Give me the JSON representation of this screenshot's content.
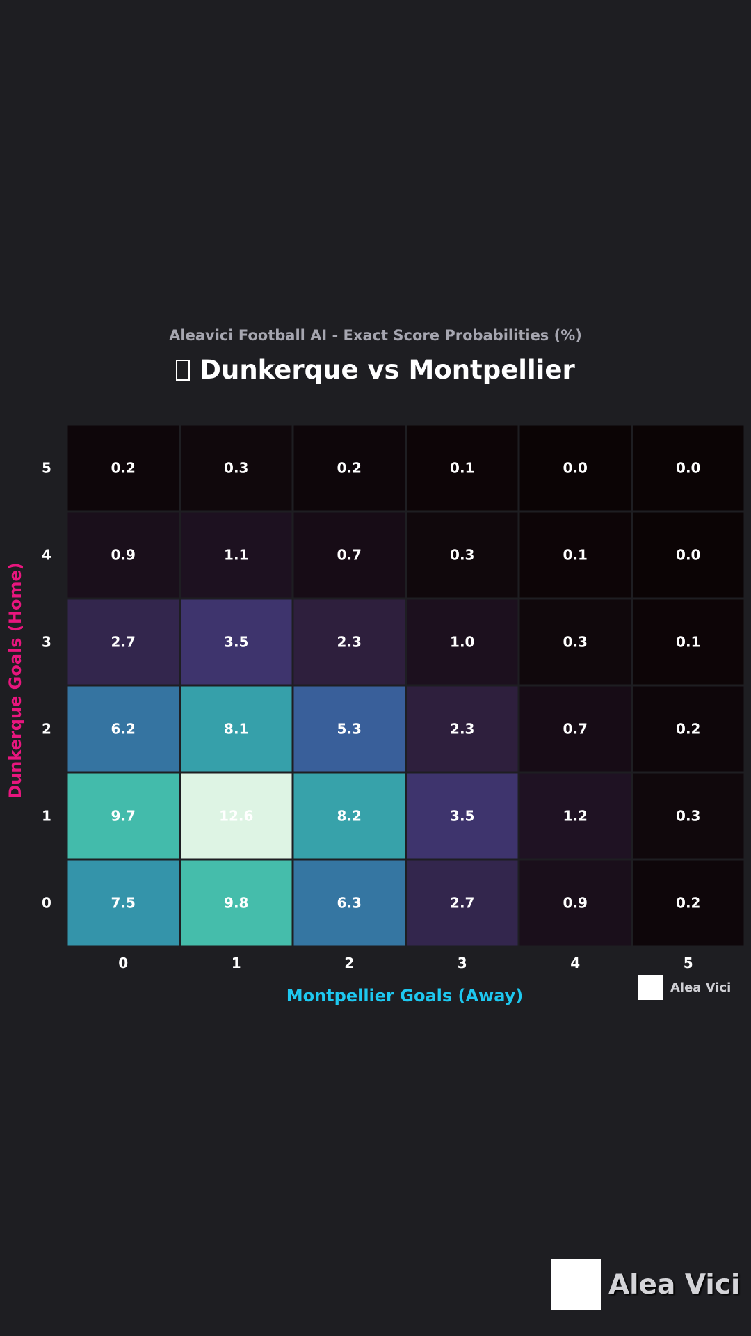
{
  "header": {
    "subtitle": "Aleavici Football AI - Exact Score Probabilities (%)",
    "title": "Dunkerque vs Montpellier"
  },
  "chart_data": {
    "type": "heatmap",
    "xlabel": "Montpellier Goals (Away)",
    "ylabel": "Dunkerque Goals (Home)",
    "x_categories": [
      "0",
      "1",
      "2",
      "3",
      "4",
      "5"
    ],
    "y_categories": [
      "0",
      "1",
      "2",
      "3",
      "4",
      "5"
    ],
    "values": [
      [
        7.5,
        9.8,
        6.3,
        2.7,
        0.9,
        0.2
      ],
      [
        9.7,
        12.6,
        8.2,
        3.5,
        1.2,
        0.3
      ],
      [
        6.2,
        8.1,
        5.3,
        2.3,
        0.7,
        0.2
      ],
      [
        2.7,
        3.5,
        2.3,
        1.0,
        0.3,
        0.1
      ],
      [
        0.9,
        1.1,
        0.7,
        0.3,
        0.1,
        0.0
      ],
      [
        0.2,
        0.3,
        0.2,
        0.1,
        0.0,
        0.0
      ]
    ],
    "colormap": "mako",
    "value_format": "0.1f"
  },
  "watermark": {
    "text": "Alea Vici"
  },
  "colors": {
    "background": "#1e1e22",
    "subtitle": "#a6a6b0",
    "xlabel": "#1ec8f0",
    "ylabel": "#e8167e"
  }
}
